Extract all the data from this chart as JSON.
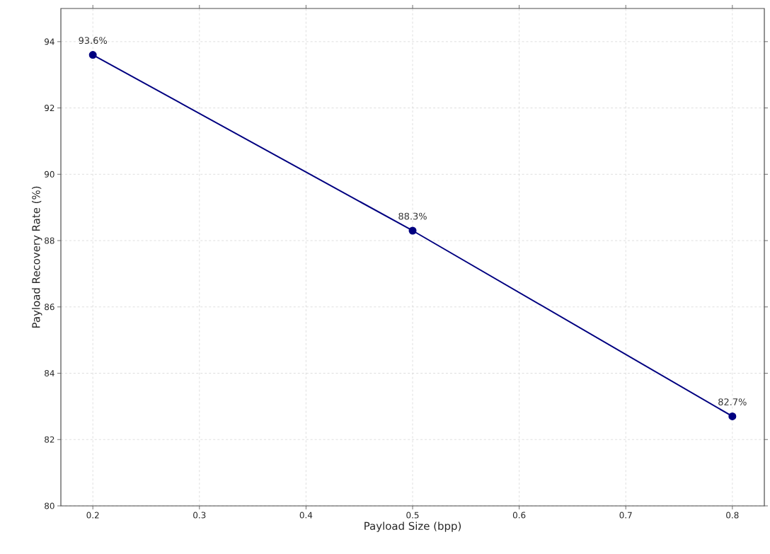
{
  "chart_data": {
    "type": "line",
    "xlabel": "Payload Size (bpp)",
    "ylabel": "Payload Recovery Rate (%)",
    "x": [
      0.2,
      0.5,
      0.8
    ],
    "series": [
      {
        "color": "#000080",
        "values": [
          93.6,
          88.3,
          82.7
        ],
        "value_labels": [
          "93.6%",
          "88.3%",
          "82.7%"
        ]
      }
    ],
    "xlim": [
      0.17,
      0.83
    ],
    "ylim": [
      80,
      95
    ],
    "xticks": [
      0.2,
      0.3,
      0.4,
      0.5,
      0.6,
      0.7,
      0.8
    ],
    "yticks": [
      80,
      82,
      84,
      86,
      88,
      90,
      92,
      94
    ],
    "grid": true,
    "marker": "circle",
    "line_style": "solid"
  }
}
